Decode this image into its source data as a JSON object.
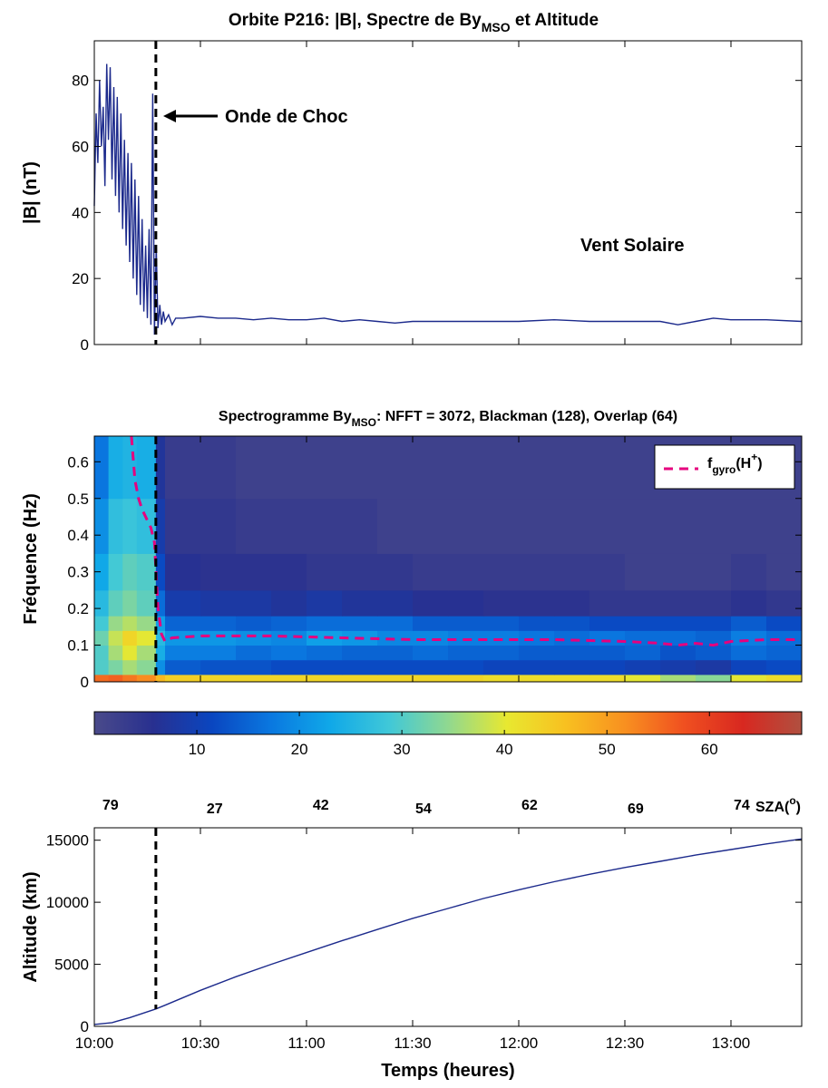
{
  "title_parts": [
    "Orbite P216: |B|, Spectre de By",
    "MSO",
    " et Altitude"
  ],
  "chart_data": [
    {
      "type": "line",
      "ylabel": "|B| (nT)",
      "x": [
        0,
        0.5,
        1,
        1.5,
        2,
        2.5,
        3,
        3.5,
        4,
        4.5,
        5,
        5.5,
        6,
        6.5,
        7,
        7.5,
        8,
        8.5,
        9,
        9.5,
        10,
        10.5,
        11,
        11.5,
        12,
        12.5,
        13,
        13.5,
        14,
        14.5,
        15,
        15.5,
        16,
        16.5,
        17,
        17.5,
        18,
        18.5,
        19,
        19.5,
        20,
        21,
        22,
        23,
        25,
        30,
        35,
        40,
        45,
        50,
        55,
        60,
        65,
        70,
        75,
        80,
        85,
        90,
        95,
        100,
        110,
        120,
        130,
        140,
        150,
        160,
        165,
        170,
        175,
        180,
        190,
        200
      ],
      "series": [
        {
          "color": "#1c2a8c",
          "values": [
            42,
            70,
            55,
            80,
            60,
            72,
            48,
            85,
            62,
            84,
            50,
            78,
            45,
            75,
            40,
            70,
            35,
            62,
            30,
            58,
            25,
            55,
            20,
            50,
            15,
            45,
            12,
            38,
            10,
            30,
            8,
            35,
            6,
            76,
            3,
            30,
            5,
            12,
            6,
            10,
            7,
            9,
            6,
            8,
            8,
            8.5,
            8,
            8,
            7.5,
            8,
            7.5,
            7.5,
            8,
            7,
            7.5,
            7,
            6.5,
            7,
            7,
            7,
            7,
            7,
            7.5,
            7,
            7,
            7,
            6,
            7,
            8,
            7.5,
            7.5,
            7
          ]
        }
      ],
      "xlim": [
        0,
        200
      ],
      "xticks": [
        30,
        60,
        90,
        120,
        150,
        180
      ],
      "ylim": [
        0,
        92
      ],
      "yticks": [
        0,
        20,
        40,
        60,
        80
      ],
      "vline": 17.4,
      "annotations": [
        "Onde de Choc",
        "Vent Solaire"
      ]
    },
    {
      "type": "heatmap",
      "title_parts": [
        "Spectrogramme By",
        "MSO",
        ": NFFT = 3072, Blackman (128), Overlap (64)"
      ],
      "ylabel": "Fréquence (Hz)",
      "x_edges": [
        0,
        4,
        8,
        12,
        17.4,
        20,
        30,
        40,
        50,
        60,
        70,
        80,
        90,
        100,
        110,
        120,
        130,
        140,
        150,
        160,
        170,
        180,
        190,
        200
      ],
      "y_edges": [
        0,
        0.02,
        0.06,
        0.1,
        0.14,
        0.18,
        0.25,
        0.35,
        0.5,
        0.67
      ],
      "z": [
        [
          55,
          56,
          54,
          52,
          47,
          44,
          43,
          43,
          43,
          43,
          43,
          43,
          43,
          43,
          42,
          42,
          42,
          42,
          40,
          36,
          34,
          40,
          42
        ],
        [
          30,
          33,
          36,
          34,
          20,
          14,
          13,
          13,
          12,
          12,
          12,
          12,
          12,
          12,
          11,
          11,
          11,
          11,
          10,
          9,
          8,
          11,
          12
        ],
        [
          30,
          36,
          40,
          36,
          24,
          18,
          18,
          16,
          17,
          16,
          15,
          15,
          16,
          15,
          15,
          14,
          14,
          14,
          15,
          13,
          14,
          16,
          15
        ],
        [
          32,
          38,
          43,
          40,
          26,
          21,
          21,
          20,
          19,
          22,
          21,
          19,
          19,
          18,
          18,
          17,
          16,
          17,
          16,
          16,
          15,
          18,
          16
        ],
        [
          29,
          35,
          37,
          35,
          22,
          15,
          15,
          14,
          15,
          16,
          16,
          16,
          14,
          14,
          14,
          13,
          13,
          12,
          12,
          12,
          12,
          14,
          12
        ],
        [
          26,
          31,
          33,
          31,
          16,
          9,
          8,
          8,
          7,
          8,
          7,
          7,
          6,
          6,
          5,
          5,
          5,
          4,
          4,
          4,
          4,
          5,
          4
        ],
        [
          23,
          29,
          31,
          30,
          12,
          6,
          5,
          5,
          5,
          4,
          4,
          4,
          3,
          3,
          3,
          3,
          3,
          3,
          2,
          2,
          2,
          3,
          2
        ],
        [
          20,
          27,
          28,
          27,
          9,
          4,
          4,
          3,
          3,
          3,
          3,
          2,
          2,
          2,
          2,
          2,
          2,
          2,
          2,
          2,
          2,
          2,
          2
        ],
        [
          17,
          24,
          25,
          24,
          7,
          3,
          3,
          2,
          2,
          2,
          2,
          2,
          2,
          2,
          2,
          2,
          2,
          2,
          2,
          2,
          2,
          2,
          2
        ]
      ],
      "colormap": [
        "#4a4a8a",
        "#283090",
        "#0a46c0",
        "#0a78e0",
        "#10a8e8",
        "#40c8d8",
        "#90d890",
        "#e8e830",
        "#f8c020",
        "#f89020",
        "#f05020",
        "#d82820",
        "#b05040"
      ],
      "clim": [
        0,
        69
      ],
      "cticks": [
        10,
        20,
        30,
        40,
        50,
        60
      ],
      "xlim": [
        0,
        200
      ],
      "xticks": [
        30,
        60,
        90,
        120,
        150,
        180
      ],
      "ylim": [
        0,
        0.67
      ],
      "yticks": [
        0,
        0.1,
        0.2,
        0.3,
        0.4,
        0.5,
        0.6
      ],
      "series": [
        {
          "name_parts": [
            "f",
            "gyro",
            "(H",
            "+",
            ")"
          ],
          "color": "#e6007e",
          "x": [
            10.5,
            11.5,
            12.5,
            13.5,
            15,
            16,
            17,
            18,
            19,
            20,
            22,
            30,
            50,
            70,
            90,
            110,
            130,
            150,
            160,
            165,
            170,
            175,
            180,
            190,
            200
          ],
          "values": [
            0.67,
            0.55,
            0.5,
            0.47,
            0.44,
            0.42,
            0.38,
            0.2,
            0.13,
            0.11,
            0.12,
            0.125,
            0.125,
            0.12,
            0.115,
            0.115,
            0.115,
            0.11,
            0.105,
            0.1,
            0.105,
            0.1,
            0.11,
            0.115,
            0.115
          ]
        }
      ],
      "vline": 17.4
    },
    {
      "type": "line",
      "ylabel": "Altitude (km)",
      "xlabel": "Temps (heures)",
      "x": [
        0,
        5,
        10,
        17.4,
        20,
        30,
        40,
        50,
        60,
        70,
        80,
        90,
        100,
        110,
        120,
        130,
        140,
        150,
        160,
        170,
        180,
        190,
        200
      ],
      "series": [
        {
          "color": "#1c2a8c",
          "values": [
            150,
            300,
            700,
            1400,
            1700,
            2900,
            4000,
            5000,
            5950,
            6900,
            7800,
            8700,
            9500,
            10300,
            11000,
            11650,
            12250,
            12800,
            13300,
            13800,
            14250,
            14700,
            15100
          ]
        }
      ],
      "xlim": [
        0,
        200
      ],
      "xticks": [
        {
          "value": 0,
          "label": "10:00"
        },
        {
          "value": 30,
          "label": "10:30"
        },
        {
          "value": 60,
          "label": "11:00"
        },
        {
          "value": 90,
          "label": "11:30"
        },
        {
          "value": 120,
          "label": "12:00"
        },
        {
          "value": 150,
          "label": "12:30"
        },
        {
          "value": 180,
          "label": "13:00"
        }
      ],
      "ylim": [
        0,
        16000
      ],
      "yticks": [
        0,
        5000,
        10000,
        15000
      ],
      "vline": 17.4,
      "sza": {
        "x": [
          2.5,
          32,
          62,
          91,
          121,
          151,
          181
        ],
        "values": [
          79,
          27,
          42,
          54,
          62,
          69,
          74
        ]
      },
      "sza_label_parts": [
        "SZA(",
        "o",
        ")"
      ]
    }
  ]
}
